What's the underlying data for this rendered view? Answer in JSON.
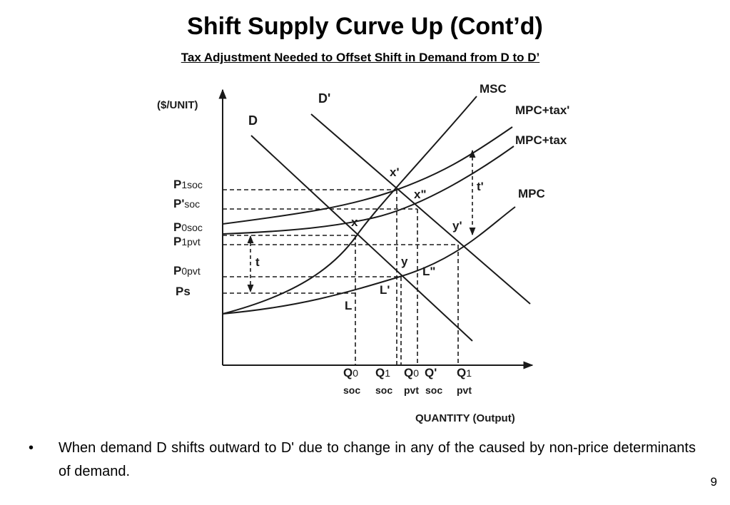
{
  "title": "Shift Supply Curve Up (Cont’d)",
  "subtitle": "Tax Adjustment Needed to Offset Shift in Demand from D to D’",
  "diagram": {
    "y_axis_label": "($/UNIT)",
    "x_axis_label": "QUANTITY (Output)",
    "price_labels": {
      "p1soc": {
        "main": "P",
        "sub": "1soc"
      },
      "pprime_soc": {
        "main": "P'",
        "sub": "soc"
      },
      "p0soc": {
        "main": "P",
        "sub": "0soc"
      },
      "p1pvt": {
        "main": "P",
        "sub": "1pvt"
      },
      "p0pvt": {
        "main": "P",
        "sub": "0pvt"
      },
      "ps": {
        "main": "Ps",
        "sub": ""
      }
    },
    "quantity_labels": {
      "q0soc": {
        "main": "Q",
        "sub": "0",
        "bottom": "soc"
      },
      "q1soc": {
        "main": "Q",
        "sub": "1",
        "bottom": "soc"
      },
      "q0pvt": {
        "main": "Q",
        "sub": "0",
        "bottom": "pvt"
      },
      "qprime_soc": {
        "main": "Q'",
        "sub": "",
        "bottom": "soc"
      },
      "q1pvt": {
        "main": "Q",
        "sub": "1",
        "bottom": "pvt"
      }
    },
    "curve_labels": {
      "msc": "MSC",
      "mpc_tax_prime": "MPC+tax'",
      "mpc_tax": "MPC+tax",
      "mpc": "MPC",
      "d": "D",
      "d_prime": "D'"
    },
    "point_labels": {
      "x_prime": "x'",
      "x_dprime": "x\"",
      "x": "x",
      "y_prime": "y'",
      "y": "y",
      "l_dprime": "L\"",
      "l_prime": "L'",
      "l": "L",
      "t": "t",
      "t_prime": "t'"
    }
  },
  "bullet": {
    "marker": "•",
    "text": "When demand D shifts outward to D' due to change in any of the caused by non-price determinants of demand."
  },
  "page_number": "9"
}
